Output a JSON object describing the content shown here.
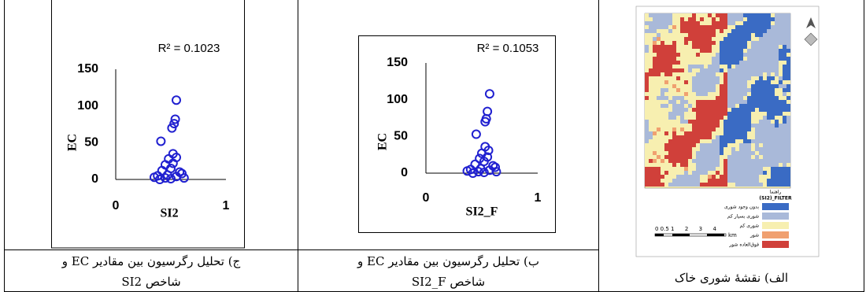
{
  "chart_data": [
    {
      "type": "scatter",
      "annotation": "R² = 0.1023",
      "x_label": "SI2",
      "y_label": "EC",
      "color": "#2020d0",
      "x": [
        0.55,
        0.54,
        0.53,
        0.51,
        0.41,
        0.52,
        0.55,
        0.48,
        0.45,
        0.5,
        0.42,
        0.6,
        0.38,
        0.35,
        0.45,
        0.5,
        0.55,
        0.62,
        0.4,
        0.58,
        0.47,
        0.52
      ],
      "values": [
        108,
        82,
        76,
        70,
        52,
        35,
        30,
        28,
        20,
        15,
        12,
        8,
        5,
        3,
        2,
        1,
        4,
        2,
        0,
        10,
        6,
        22
      ],
      "xlim": [
        0,
        1
      ],
      "ylim": [
        0,
        150
      ],
      "xticks": [
        0,
        1
      ],
      "yticks": [
        0,
        50,
        100,
        150
      ]
    },
    {
      "type": "scatter",
      "annotation": "R² = 0.1053",
      "x_label": "SI2_F",
      "y_label": "EC",
      "color": "#2020d0",
      "x": [
        0.57,
        0.55,
        0.54,
        0.53,
        0.45,
        0.53,
        0.56,
        0.5,
        0.48,
        0.52,
        0.44,
        0.62,
        0.4,
        0.37,
        0.47,
        0.52,
        0.57,
        0.63,
        0.42,
        0.6,
        0.49,
        0.55
      ],
      "values": [
        108,
        84,
        74,
        70,
        53,
        36,
        31,
        27,
        20,
        16,
        12,
        8,
        5,
        3,
        2,
        1,
        4,
        2,
        0,
        10,
        6,
        22
      ],
      "xlim": [
        0,
        1
      ],
      "ylim": [
        0,
        150
      ],
      "xticks": [
        0,
        1
      ],
      "yticks": [
        0,
        50,
        100,
        150
      ]
    }
  ],
  "captions": [
    [
      "ج) تحلیل رگرسیون بین مقادیر EC و",
      "شاخص SI2"
    ],
    [
      "ب) تحلیل رگرسیون بین مقادیر EC و",
      "شاخص SI2_F"
    ],
    [
      "الف) نقشهٔ شوری خاک"
    ]
  ],
  "map": {
    "legend_title": "راهنما",
    "legend_subtitle": "(SI2)_FILTER",
    "legend": [
      {
        "label": "بدون وجود شوری",
        "color": "#3a6bc4"
      },
      {
        "label": "شوری بسیار کم",
        "color": "#a9b9d9"
      },
      {
        "label": "شوری کم",
        "color": "#f7efb0"
      },
      {
        "label": "شور",
        "color": "#f0a070"
      },
      {
        "label": "فوق‌العاده شور",
        "color": "#d0403a"
      }
    ],
    "scale": "0 0.5 1      2      3      4",
    "scale_unit": "km"
  }
}
